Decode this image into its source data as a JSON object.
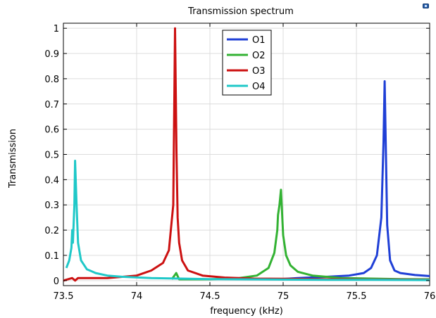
{
  "chart_data": {
    "type": "line",
    "title": "Transmission spectrum",
    "xlabel": "frequency (kHz)",
    "ylabel": "Transmission",
    "xlim": [
      73.5,
      76.0
    ],
    "ylim": [
      -0.02,
      1.02
    ],
    "x_ticks": [
      73.5,
      74,
      74.5,
      75,
      75.5,
      76
    ],
    "x_tick_labels": [
      "73.5",
      "74",
      "74.5",
      "75",
      "75.5",
      "76"
    ],
    "y_ticks": [
      0,
      0.1,
      0.2,
      0.3,
      0.4,
      0.5,
      0.6,
      0.7,
      0.8,
      0.9,
      1
    ],
    "y_tick_labels": [
      "0",
      "0.1",
      "0.2",
      "0.3",
      "0.4",
      "0.5",
      "0.6",
      "0.7",
      "0.8",
      "0.9",
      "1"
    ],
    "grid": true,
    "legend_position": "top-center",
    "series": [
      {
        "name": "O1",
        "color": "#1f3fd6",
        "x": [
          74.96,
          75.1,
          75.3,
          75.45,
          75.55,
          75.6,
          75.64,
          75.67,
          75.685,
          75.693,
          75.7,
          75.71,
          75.73,
          75.76,
          75.8,
          75.9,
          76.0
        ],
        "y": [
          0.005,
          0.01,
          0.015,
          0.02,
          0.03,
          0.05,
          0.1,
          0.25,
          0.55,
          0.79,
          0.55,
          0.22,
          0.08,
          0.04,
          0.03,
          0.022,
          0.018
        ]
      },
      {
        "name": "O2",
        "color": "#33b233",
        "x": [
          74.24,
          74.27,
          74.29,
          74.5,
          74.7,
          74.82,
          74.9,
          74.94,
          74.96,
          74.965,
          74.975,
          74.985,
          74.99,
          75.0,
          75.02,
          75.05,
          75.1,
          75.2,
          75.4,
          75.6,
          75.8,
          76.0
        ],
        "y": [
          0.005,
          0.03,
          0.005,
          0.005,
          0.01,
          0.02,
          0.05,
          0.11,
          0.2,
          0.26,
          0.3,
          0.36,
          0.3,
          0.18,
          0.1,
          0.06,
          0.035,
          0.02,
          0.01,
          0.008,
          0.006,
          0.005
        ]
      },
      {
        "name": "O3",
        "color": "#cc1111",
        "x": [
          73.5,
          73.56,
          73.58,
          73.6,
          73.8,
          74.0,
          74.1,
          74.18,
          74.22,
          74.24,
          74.25,
          74.262,
          74.272,
          74.28,
          74.29,
          74.31,
          74.35,
          74.45,
          74.6,
          74.8,
          75.0,
          75.2,
          75.4,
          75.6,
          75.8,
          76.0
        ],
        "y": [
          0.0,
          0.01,
          0.0,
          0.01,
          0.01,
          0.02,
          0.04,
          0.07,
          0.12,
          0.24,
          0.3,
          1.0,
          0.5,
          0.25,
          0.15,
          0.08,
          0.04,
          0.02,
          0.012,
          0.008,
          0.007,
          0.006,
          0.005,
          0.004,
          0.004,
          0.003
        ]
      },
      {
        "name": "O4",
        "color": "#1fc8c8",
        "x": [
          73.52,
          73.54,
          73.555,
          73.56,
          73.565,
          73.575,
          73.58,
          73.59,
          73.6,
          73.62,
          73.66,
          73.72,
          73.8,
          73.9,
          74.1,
          74.3,
          74.5,
          74.7,
          75.0,
          75.3,
          75.6,
          76.0
        ],
        "y": [
          0.05,
          0.08,
          0.13,
          0.2,
          0.15,
          0.3,
          0.475,
          0.3,
          0.15,
          0.08,
          0.045,
          0.03,
          0.02,
          0.015,
          0.01,
          0.008,
          0.006,
          0.005,
          0.004,
          0.003,
          0.003,
          0.002
        ]
      }
    ]
  }
}
